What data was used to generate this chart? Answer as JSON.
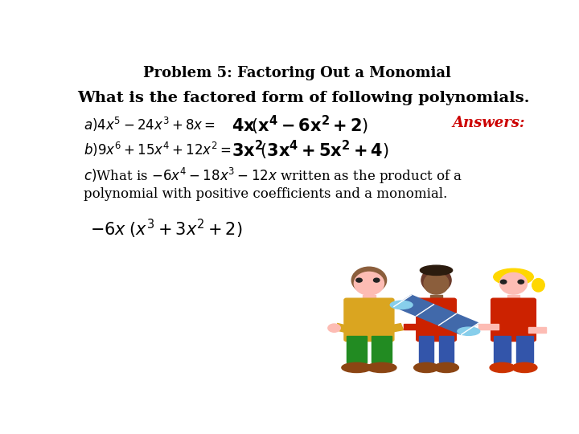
{
  "title": "Problem 5: Factoring Out a Monomial",
  "subtitle": "What is the factored form of following polynomials.",
  "answers_label": "Answers:",
  "bg_color": "#ffffff",
  "title_color": "#000000",
  "subtitle_color": "#000000",
  "answer_text_color": "#cc0000",
  "math_answer_color": "#000000",
  "text_color": "#000000",
  "title_fontsize": 13,
  "subtitle_fontsize": 14,
  "body_fontsize": 12,
  "answer_fontsize": 14
}
